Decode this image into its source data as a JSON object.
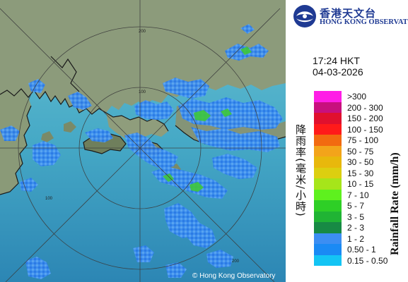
{
  "logo": {
    "title_zh": "香港天文台",
    "title_en": "HONG KONG OBSERVATORY"
  },
  "timestamp": {
    "time": "17:24 HKT",
    "date": "04-03-2026"
  },
  "legend": {
    "title_zh": "降雨率(毫米/小時)",
    "title_en": "Rainfall Rate (mm/h)",
    "items": [
      {
        "label": ">300",
        "color": "#ff1ee6"
      },
      {
        "label": "200 - 300",
        "color": "#c8107e"
      },
      {
        "label": "150 - 200",
        "color": "#e0102e"
      },
      {
        "label": "100 - 150",
        "color": "#ff1a1a"
      },
      {
        "label": "75 - 100",
        "color": "#f26a10"
      },
      {
        "label": "50 - 75",
        "color": "#f3a41a"
      },
      {
        "label": "30 - 50",
        "color": "#e8b80c"
      },
      {
        "label": "15 - 30",
        "color": "#dccf10"
      },
      {
        "label": "10 - 15",
        "color": "#a6e51a"
      },
      {
        "label": "7 - 10",
        "color": "#5ef11e"
      },
      {
        "label": "5 - 7",
        "color": "#2ecf26"
      },
      {
        "label": "3 - 5",
        "color": "#20b434"
      },
      {
        "label": "2 - 3",
        "color": "#178a44"
      },
      {
        "label": "1 - 2",
        "color": "#3c8ef2"
      },
      {
        "label": "0.50 - 1",
        "color": "#1a8af4"
      },
      {
        "label": "0.15 - 0.50",
        "color": "#14c4f4"
      }
    ]
  },
  "map": {
    "range_labels": [
      "200",
      "100",
      "100",
      "200"
    ],
    "copyright": "© Hong Kong Observatory"
  }
}
